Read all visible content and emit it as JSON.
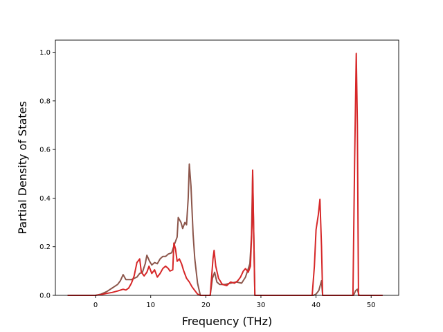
{
  "chart_data": {
    "type": "line",
    "title": "",
    "xlabel": "Frequency (THz)",
    "ylabel": "Partial Density of States",
    "xlim": [
      -7.3,
      55.0
    ],
    "ylim": [
      0,
      1.05
    ],
    "xticks": [
      0,
      10,
      20,
      30,
      40,
      50
    ],
    "yticks": [
      0.0,
      0.2,
      0.4,
      0.6,
      0.8,
      1.0
    ],
    "ytick_labels": [
      "0.0",
      "0.2",
      "0.4",
      "0.6",
      "0.8",
      "1.0"
    ],
    "grid": false,
    "legend": false,
    "series": [
      {
        "color": "#8c564b",
        "points": [
          [
            -5,
            0
          ],
          [
            0,
            0
          ],
          [
            1,
            0.005
          ],
          [
            2,
            0.015
          ],
          [
            3,
            0.03
          ],
          [
            4,
            0.045
          ],
          [
            4.5,
            0.06
          ],
          [
            5,
            0.085
          ],
          [
            5.5,
            0.065
          ],
          [
            6.5,
            0.065
          ],
          [
            7.5,
            0.075
          ],
          [
            8,
            0.09
          ],
          [
            8.5,
            0.095
          ],
          [
            9,
            0.13
          ],
          [
            9.3,
            0.165
          ],
          [
            9.8,
            0.14
          ],
          [
            10.2,
            0.125
          ],
          [
            10.7,
            0.135
          ],
          [
            11.2,
            0.13
          ],
          [
            11.7,
            0.15
          ],
          [
            12.2,
            0.16
          ],
          [
            12.7,
            0.16
          ],
          [
            13.2,
            0.17
          ],
          [
            13.8,
            0.175
          ],
          [
            14.3,
            0.21
          ],
          [
            14.8,
            0.24
          ],
          [
            15,
            0.32
          ],
          [
            15.5,
            0.3
          ],
          [
            15.8,
            0.275
          ],
          [
            16.2,
            0.3
          ],
          [
            16.5,
            0.29
          ],
          [
            16.8,
            0.4
          ],
          [
            17,
            0.54
          ],
          [
            17.3,
            0.45
          ],
          [
            17.7,
            0.25
          ],
          [
            18,
            0.15
          ],
          [
            18.5,
            0.05
          ],
          [
            19,
            0
          ],
          [
            20.8,
            0
          ],
          [
            21.2,
            0.07
          ],
          [
            21.6,
            0.095
          ],
          [
            22,
            0.055
          ],
          [
            22.5,
            0.045
          ],
          [
            23.5,
            0.045
          ],
          [
            24.5,
            0.05
          ],
          [
            25.5,
            0.055
          ],
          [
            26.5,
            0.05
          ],
          [
            27.2,
            0.075
          ],
          [
            28,
            0.13
          ],
          [
            28.3,
            0.25
          ],
          [
            28.5,
            0.5
          ],
          [
            28.7,
            0.25
          ],
          [
            28.9,
            0
          ],
          [
            39.5,
            0
          ],
          [
            40,
            0.005
          ],
          [
            40.5,
            0.02
          ],
          [
            41,
            0.06
          ],
          [
            41.2,
            0
          ],
          [
            46.8,
            0
          ],
          [
            47.2,
            0.02
          ],
          [
            47.5,
            0.025
          ],
          [
            47.8,
            0
          ],
          [
            52,
            0
          ]
        ]
      },
      {
        "color": "#d62728",
        "points": [
          [
            -5,
            0
          ],
          [
            0,
            0
          ],
          [
            1,
            0.003
          ],
          [
            2,
            0.008
          ],
          [
            3,
            0.012
          ],
          [
            4,
            0.018
          ],
          [
            5,
            0.025
          ],
          [
            5.5,
            0.022
          ],
          [
            6,
            0.03
          ],
          [
            6.5,
            0.05
          ],
          [
            7,
            0.08
          ],
          [
            7.5,
            0.135
          ],
          [
            8,
            0.15
          ],
          [
            8.3,
            0.095
          ],
          [
            8.8,
            0.08
          ],
          [
            9.3,
            0.095
          ],
          [
            9.7,
            0.12
          ],
          [
            10.2,
            0.09
          ],
          [
            10.7,
            0.105
          ],
          [
            11.2,
            0.075
          ],
          [
            11.7,
            0.09
          ],
          [
            12.2,
            0.11
          ],
          [
            12.7,
            0.12
          ],
          [
            13.2,
            0.11
          ],
          [
            13.5,
            0.1
          ],
          [
            14,
            0.105
          ],
          [
            14.2,
            0.215
          ],
          [
            14.5,
            0.19
          ],
          [
            14.8,
            0.14
          ],
          [
            15.2,
            0.15
          ],
          [
            15.6,
            0.13
          ],
          [
            16,
            0.1
          ],
          [
            16.5,
            0.07
          ],
          [
            17,
            0.055
          ],
          [
            17.5,
            0.035
          ],
          [
            18,
            0.02
          ],
          [
            18.5,
            0.005
          ],
          [
            19,
            0
          ],
          [
            20.8,
            0
          ],
          [
            21,
            0.06
          ],
          [
            21.3,
            0.15
          ],
          [
            21.5,
            0.185
          ],
          [
            21.8,
            0.12
          ],
          [
            22.3,
            0.07
          ],
          [
            23,
            0.045
          ],
          [
            23.8,
            0.04
          ],
          [
            24.5,
            0.055
          ],
          [
            25.2,
            0.05
          ],
          [
            25.8,
            0.06
          ],
          [
            26.3,
            0.075
          ],
          [
            26.8,
            0.1
          ],
          [
            27.2,
            0.11
          ],
          [
            27.7,
            0.095
          ],
          [
            28.1,
            0.12
          ],
          [
            28.4,
            0.3
          ],
          [
            28.5,
            0.515
          ],
          [
            28.7,
            0.25
          ],
          [
            28.9,
            0
          ],
          [
            39.3,
            0
          ],
          [
            39.7,
            0.12
          ],
          [
            40,
            0.27
          ],
          [
            40.4,
            0.33
          ],
          [
            40.7,
            0.395
          ],
          [
            41,
            0.2
          ],
          [
            41.2,
            0
          ],
          [
            46.7,
            0
          ],
          [
            47,
            0.55
          ],
          [
            47.3,
            0.995
          ],
          [
            47.5,
            0.7
          ],
          [
            47.7,
            0
          ],
          [
            52,
            0
          ]
        ]
      }
    ]
  }
}
